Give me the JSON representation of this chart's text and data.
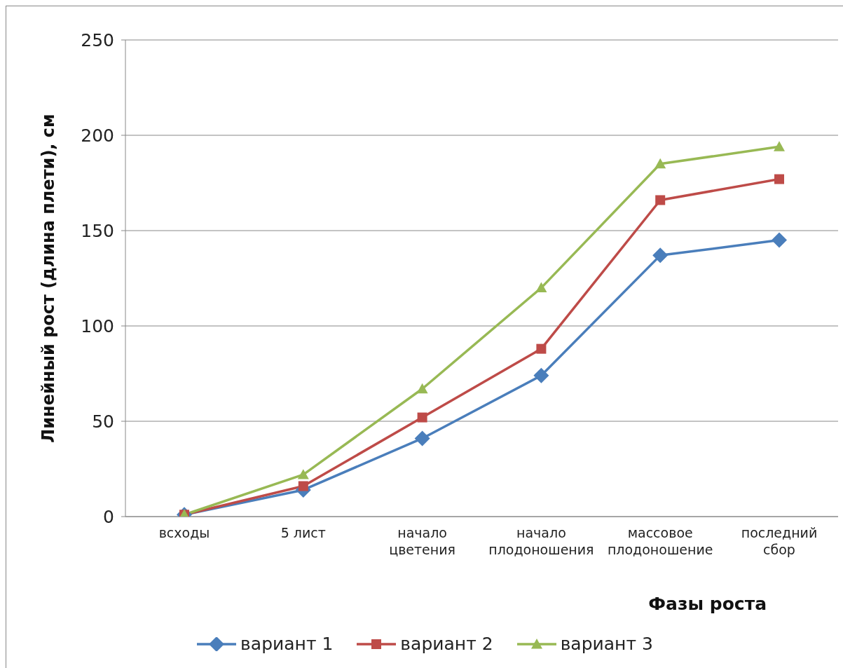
{
  "chart_data": {
    "type": "line",
    "xlabel": "Фазы роста",
    "ylabel": "Линейный рост (длина плети), см",
    "categories": [
      "всходы",
      "5 лист",
      "начало цветения",
      "начало плодоношения",
      "массовое плодоношение",
      "последний сбор"
    ],
    "series": [
      {
        "name": "вариант 1",
        "color": "#4a7ebb",
        "marker": "diamond",
        "values": [
          1,
          14,
          41,
          74,
          137,
          145
        ]
      },
      {
        "name": "вариант 2",
        "color": "#be4b48",
        "marker": "square",
        "values": [
          1,
          16,
          52,
          88,
          166,
          177
        ]
      },
      {
        "name": "вариант 3",
        "color": "#98b954",
        "marker": "triangle",
        "values": [
          1,
          22,
          67,
          120,
          185,
          194
        ]
      }
    ],
    "ylim": [
      0,
      250
    ],
    "yticks": [
      0,
      50,
      100,
      150,
      200,
      250
    ],
    "grid": "y",
    "legend": "bottom",
    "line_style": "solid"
  }
}
